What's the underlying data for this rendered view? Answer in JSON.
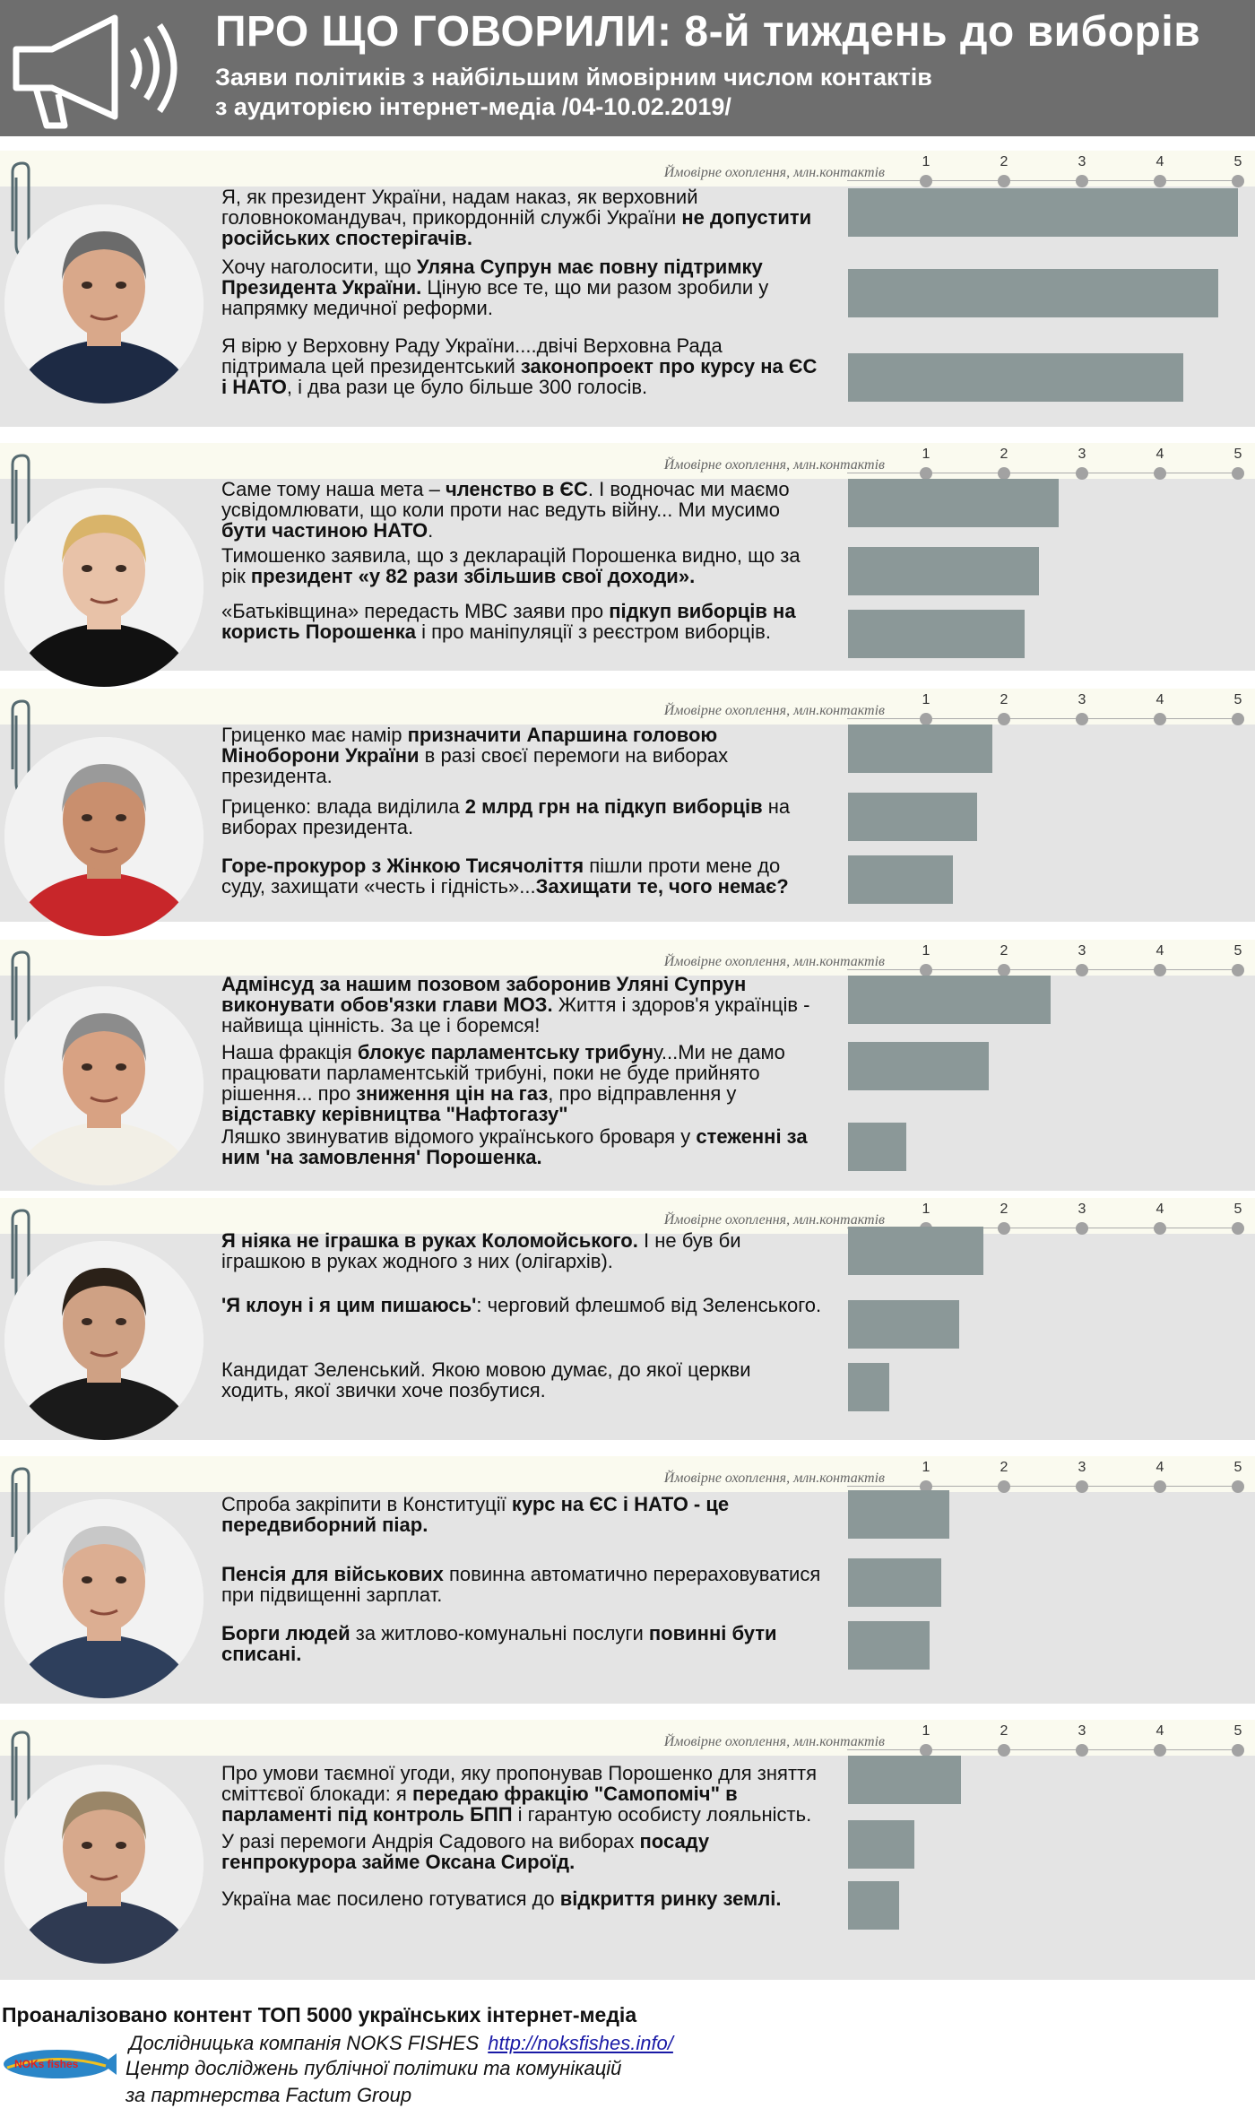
{
  "header": {
    "title": "ПРО ЩО ГОВОРИЛИ: 8-й тиждень до виборів",
    "subtitle_line1": "Заяви політиків з найбільшим ймовірним числом контактів",
    "subtitle_line2": "з аудиторією інтернет-медіа /04-10.02.2019/",
    "icon": "megaphone-icon"
  },
  "axis_caption": "Ймовірне охоплення, млн.контактів",
  "axis_ticks": [
    "1",
    "2",
    "3",
    "4",
    "5"
  ],
  "colors": {
    "bar": "#8b9898",
    "header_bg": "#6e6e6e",
    "section_bg": "#e4e4e4",
    "axis_strip": "#fafaef"
  },
  "chart_data": {
    "type": "bar",
    "orientation": "horizontal",
    "xlabel": "Ймовірне охоплення, млн.контактів",
    "xlim": [
      0,
      5
    ],
    "ticks": [
      1,
      2,
      3,
      4,
      5
    ],
    "groups": [
      {
        "photo": "politician-1-photo",
        "values": [
          5.0,
          4.75,
          4.3
        ]
      },
      {
        "photo": "politician-2-photo",
        "values": [
          2.7,
          2.45,
          2.27
        ]
      },
      {
        "photo": "politician-3-photo",
        "values": [
          1.85,
          1.65,
          1.35
        ]
      },
      {
        "photo": "politician-4-photo",
        "values": [
          2.6,
          1.8,
          0.75
        ]
      },
      {
        "photo": "politician-5-photo",
        "values": [
          1.73,
          1.43,
          0.53
        ]
      },
      {
        "photo": "politician-6-photo",
        "values": [
          1.3,
          1.2,
          1.05
        ]
      },
      {
        "photo": "politician-7-photo",
        "values": [
          1.45,
          0.85,
          0.65
        ]
      }
    ]
  },
  "sections": [
    {
      "statements": [
        [
          [
            "Я, як президент України, надам наказ, як верховний головнокомандувач, прикордонній службі України ",
            false
          ],
          [
            "не допустити російських спостерігачів.",
            true
          ]
        ],
        [
          [
            "Хочу наголосити, що ",
            false
          ],
          [
            "Уляна Супрун має повну підтримку Президента України.",
            true
          ],
          [
            " Ціную все те, що ми разом зробили у напрямку медичної реформи.",
            false
          ]
        ],
        [
          [
            "Я вірю у Верховну Раду України....двічі Верховна Рада підтримала цей президентський ",
            false
          ],
          [
            "законопроект про курсу на ЄС і НАТО",
            true
          ],
          [
            ", і два рази це було більше 300 голосів.",
            false
          ]
        ]
      ]
    },
    {
      "statements": [
        [
          [
            "Саме тому наша мета – ",
            false
          ],
          [
            "членство в ЄС",
            true
          ],
          [
            ". І водночас ми маємо усвідомлювати, що коли проти нас ведуть війну... Ми мусимо ",
            false
          ],
          [
            "бути частиною НАТО",
            true
          ],
          [
            ".",
            false
          ]
        ],
        [
          [
            "Тимошенко заявила, що з декларацій Порошенка видно, що за рік ",
            false
          ],
          [
            "президент «у 82 рази збільшив свої доходи».",
            true
          ]
        ],
        [
          [
            "«Батьківщина» передасть МВС заяви про ",
            false
          ],
          [
            "підкуп виборців на користь Порошенка",
            true
          ],
          [
            " і про маніпуляції з реєстром виборців.",
            false
          ]
        ]
      ]
    },
    {
      "statements": [
        [
          [
            "Гриценко має намір ",
            false
          ],
          [
            "призначити Апаршина головою Міноборони України",
            true
          ],
          [
            " в разі своєї перемоги на виборах президента.",
            false
          ]
        ],
        [
          [
            "Гриценко: влада виділила ",
            false
          ],
          [
            "2 млрд грн на підкуп виборців",
            true
          ],
          [
            " на виборах президента.",
            false
          ]
        ],
        [
          [
            "Горе-прокурор з Жінкою Тисячоліття",
            true
          ],
          [
            " пішли проти мене до суду, захищати «честь і гідність»...",
            false
          ],
          [
            "Захищати те, чого немає?",
            true
          ]
        ]
      ]
    },
    {
      "statements": [
        [
          [
            "Адмінсуд за нашим позовом заборонив Уляні Супрун виконувати обов'язки глави МОЗ.",
            true
          ],
          [
            " Життя і здоров'я українців - найвища цінність. За це і боремся!",
            false
          ]
        ],
        [
          [
            "Наша фракція ",
            false
          ],
          [
            "блокує парламентську трибун",
            true
          ],
          [
            "у...Ми не дамо працювати парламентській трибуні, поки не буде прийнято рішення... про ",
            false
          ],
          [
            "зниження цін на газ",
            true
          ],
          [
            ", про відправлення у ",
            false
          ],
          [
            "відставку керівництва \"Нафтогазу\"",
            true
          ]
        ],
        [
          [
            "Ляшко звинуватив відомого українського броваря у ",
            false
          ],
          [
            "стеженні за ним 'на замовлення' Порошенка.",
            true
          ]
        ]
      ]
    },
    {
      "statements": [
        [
          [
            "Я ніяка не іграшка в руках Коломойського.",
            true
          ],
          [
            " І не був би іграшкою в руках жодного з них (олігархів).",
            false
          ]
        ],
        [
          [
            "'Я клоун і я цим пишаюсь'",
            true
          ],
          [
            ": черговий флешмоб від Зеленського.",
            false
          ]
        ],
        [
          [
            "Кандидат Зеленський. Якою мовою думає, до якої церкви ходить, якої звички хоче позбутися.",
            false
          ]
        ]
      ]
    },
    {
      "statements": [
        [
          [
            "Спроба закріпити в Конституції ",
            false
          ],
          [
            "курс на ЄС і НАТО - це передвиборний піар.",
            true
          ]
        ],
        [
          [
            "Пенсія для військових",
            true
          ],
          [
            " повинна автоматично перераховуватися при підвищенні зарплат.",
            false
          ]
        ],
        [
          [
            "Борги людей",
            true
          ],
          [
            " за житлово-комунальні послуги ",
            false
          ],
          [
            "повинні бути списані.",
            true
          ]
        ]
      ]
    },
    {
      "statements": [
        [
          [
            "Про умови таємної угоди, яку пропонував Порошенко для зняття сміттєвої блокади: я ",
            false
          ],
          [
            "передаю фракцію \"Самопоміч\" в парламенті під контроль БПП",
            true
          ],
          [
            " і гарантую особисту лояльність.",
            false
          ]
        ],
        [
          [
            "У разі перемоги Андрія Садового на виборах ",
            false
          ],
          [
            "посаду генпрокурора займе Оксана Сироїд.",
            true
          ]
        ],
        [
          [
            "Україна має посилено готуватися до ",
            false
          ],
          [
            "відкриття ринку землі.",
            true
          ]
        ]
      ]
    }
  ],
  "footer": {
    "analyzed": "Проаналізовано контент ТОП 5000 українських інтернет-медіа",
    "company": "Дослідницька компанія NOKS FISHES",
    "url": "http://noksfishes.info/",
    "center": "Центр досліджень публічної політики та комунікацій",
    "partner": "за партнерства Factum Group",
    "logo_text": "NOKs fishes"
  }
}
